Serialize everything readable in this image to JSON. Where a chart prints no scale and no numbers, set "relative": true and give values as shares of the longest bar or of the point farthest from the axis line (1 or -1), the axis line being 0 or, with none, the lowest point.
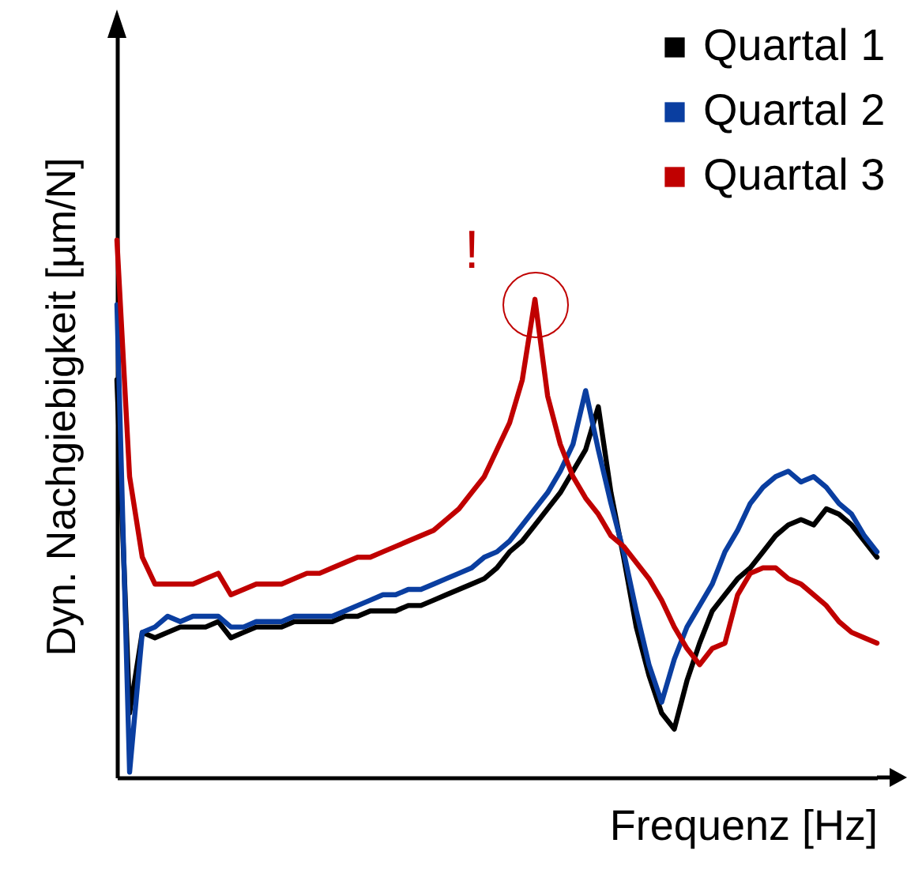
{
  "chart_data": {
    "type": "line",
    "relative": true,
    "tick_labels": false,
    "legend": "top right",
    "xlabel": "Frequenz [Hz]",
    "ylabel": "Dyn. Nachgiebigkeit [µm/N]",
    "annotations": [
      "!"
    ],
    "categories": [
      null,
      null,
      null,
      null,
      null,
      null,
      null,
      null,
      null,
      null,
      null,
      null,
      null,
      null,
      null,
      null,
      null,
      null,
      null,
      null,
      null,
      null,
      null,
      null,
      null,
      null,
      null,
      null,
      null,
      null,
      null,
      null,
      null,
      null,
      null,
      null,
      null,
      null,
      null,
      null,
      null,
      null,
      null,
      null,
      null,
      null,
      null,
      null,
      null,
      null,
      null,
      null,
      null,
      null,
      null,
      null,
      null,
      null,
      null,
      null,
      null
    ],
    "series": [
      {
        "name": "Quartal 1",
        "color": "#000000",
        "values": [
          0.74,
          0.12,
          0.27,
          0.26,
          0.27,
          0.28,
          0.28,
          0.28,
          0.29,
          0.26,
          0.27,
          0.28,
          0.28,
          0.28,
          0.29,
          0.29,
          0.29,
          0.29,
          0.3,
          0.3,
          0.31,
          0.31,
          0.31,
          0.32,
          0.32,
          0.33,
          0.34,
          0.35,
          0.36,
          0.37,
          0.39,
          0.42,
          0.44,
          0.47,
          0.5,
          0.53,
          0.57,
          0.61,
          0.69,
          0.53,
          0.41,
          0.28,
          0.19,
          0.12,
          0.09,
          0.18,
          0.25,
          0.31,
          0.34,
          0.37,
          0.39,
          0.42,
          0.45,
          0.47,
          0.48,
          0.47,
          0.5,
          0.49,
          0.47,
          0.44,
          0.41
        ]
      },
      {
        "name": "Quartal 2",
        "color": "#0a3ea0",
        "values": [
          0.88,
          0.01,
          0.27,
          0.28,
          0.3,
          0.29,
          0.3,
          0.3,
          0.3,
          0.28,
          0.28,
          0.29,
          0.29,
          0.29,
          0.3,
          0.3,
          0.3,
          0.3,
          0.31,
          0.32,
          0.33,
          0.34,
          0.34,
          0.35,
          0.35,
          0.36,
          0.37,
          0.38,
          0.39,
          0.41,
          0.42,
          0.44,
          0.47,
          0.5,
          0.53,
          0.57,
          0.62,
          0.72,
          0.61,
          0.51,
          0.42,
          0.31,
          0.21,
          0.14,
          0.22,
          0.28,
          0.32,
          0.36,
          0.42,
          0.46,
          0.51,
          0.54,
          0.56,
          0.57,
          0.55,
          0.56,
          0.54,
          0.51,
          0.49,
          0.45,
          0.42
        ]
      },
      {
        "name": "Quartal 3",
        "color": "#c00000",
        "values": [
          1.0,
          0.56,
          0.41,
          0.36,
          0.36,
          0.36,
          0.36,
          0.37,
          0.38,
          0.34,
          0.35,
          0.36,
          0.36,
          0.36,
          0.37,
          0.38,
          0.38,
          0.39,
          0.4,
          0.41,
          0.41,
          0.42,
          0.43,
          0.44,
          0.45,
          0.46,
          0.48,
          0.5,
          0.53,
          0.56,
          0.61,
          0.66,
          0.74,
          0.89,
          0.71,
          0.62,
          0.56,
          0.52,
          0.49,
          0.45,
          0.43,
          0.4,
          0.37,
          0.33,
          0.28,
          0.24,
          0.21,
          0.24,
          0.25,
          0.34,
          0.38,
          0.39,
          0.39,
          0.37,
          0.36,
          0.34,
          0.32,
          0.29,
          0.27,
          0.26,
          0.25
        ]
      }
    ]
  }
}
